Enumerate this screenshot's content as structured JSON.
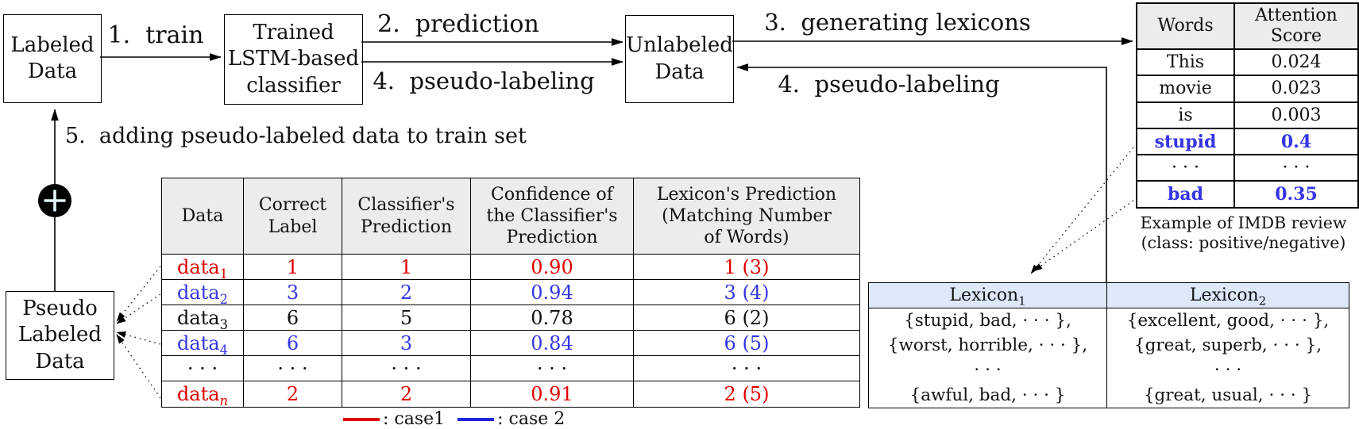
{
  "colors": {
    "red": "#e10000",
    "blue": "#3535e4",
    "table_header_gray": "#ececec",
    "lexicon_header_blue": "#dde9f9"
  },
  "boxes": {
    "labeled": {
      "label": "Labeled\nData"
    },
    "classifier": {
      "label": "Trained\nLSTM-based\nclassifier"
    },
    "unlabeled": {
      "label": "Unlabeled\nData"
    },
    "pseudo": {
      "label": "Pseudo\nLabeled\nData"
    }
  },
  "flow_labels": {
    "train": "1.  train",
    "prediction": "2.  prediction",
    "generating_lexicons": "3.  generating lexicons",
    "pseudo_labeling_left": "4.  pseudo-labeling",
    "pseudo_labeling_right": "4.  pseudo-labeling",
    "adding": "5.  adding pseudo-labeled data to train set"
  },
  "plus_icon": "circled-plus",
  "center_table": {
    "headers": [
      "Data",
      "Correct\nLabel",
      "Classifier's\nPrediction",
      "Confidence of\nthe Classifier's\nPrediction",
      "Lexicon's Prediction\n(Matching Number\nof Words)"
    ],
    "rows": [
      {
        "color": "red",
        "data": {
          "t": "data",
          "sub": "1"
        },
        "correct": "1",
        "pred": "1",
        "conf": "0.90",
        "lex": "1 (3)"
      },
      {
        "color": "blue",
        "data": {
          "t": "data",
          "sub": "2"
        },
        "correct": "3",
        "pred": "2",
        "conf": "0.94",
        "lex": "3 (4)"
      },
      {
        "color": "black",
        "data": {
          "t": "data",
          "sub": "3"
        },
        "correct": "6",
        "pred": "5",
        "conf": "0.78",
        "lex": "6 (2)"
      },
      {
        "color": "blue",
        "data": {
          "t": "data",
          "sub": "4"
        },
        "correct": "6",
        "pred": "3",
        "conf": "0.84",
        "lex": "6 (5)"
      },
      {
        "color": "black",
        "data": {
          "t": "· · ·"
        },
        "correct": "· · ·",
        "pred": "· · ·",
        "conf": "· · ·",
        "lex": "· · ·"
      },
      {
        "color": "red",
        "data": {
          "t": "data",
          "sub": "n"
        },
        "correct": "2",
        "pred": "2",
        "conf": "0.91",
        "lex": "2 (5)"
      }
    ]
  },
  "legend": [
    {
      "color": "#e10000",
      "label": ": case1"
    },
    {
      "color": "#2222dd",
      "label": ": case 2"
    }
  ],
  "words_table": {
    "headers": [
      "Words",
      "Attention\nScore"
    ],
    "rows": [
      {
        "word": "This",
        "score": "0.024",
        "highlight": false
      },
      {
        "word": "movie",
        "score": "0.023",
        "highlight": false
      },
      {
        "word": "is",
        "score": "0.003",
        "highlight": false
      },
      {
        "word": "stupid",
        "score": "0.4",
        "highlight": true
      },
      {
        "word": "· · ·",
        "score": "· · ·",
        "highlight": false
      },
      {
        "word": "bad",
        "score": "0.35",
        "highlight": true
      }
    ],
    "caption": "Example of IMDB review\n(class: positive/negative)"
  },
  "lexicon_table": {
    "headers": [
      {
        "t": "Lexicon",
        "sub": "1"
      },
      {
        "t": "Lexicon",
        "sub": "2"
      }
    ],
    "columns": [
      [
        "{stupid, bad, · · · },",
        "{worst, horrible, · · · },",
        "· · ·",
        "{awful, bad, · · · }"
      ],
      [
        "{excellent, good, · · · },",
        "{great, superb, · · · },",
        "· · ·",
        "{great, usual, · · · }"
      ]
    ]
  }
}
